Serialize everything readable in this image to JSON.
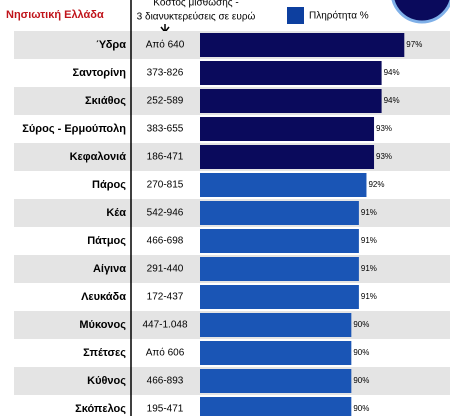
{
  "chart_data": {
    "type": "barh",
    "title": "Νησιωτική Ελλάδα",
    "cost_header": [
      "Κόστος μίσθωσης -",
      "3 διανυκτερεύσεις σε ευρώ"
    ],
    "categories": [
      "Ύδρα",
      "Σαντορίνη",
      "Σκιάθος",
      "Σύρος - Ερμούπολη",
      "Κεφαλονιά",
      "Πάρος",
      "Κέα",
      "Πάτμος",
      "Αίγινα",
      "Λευκάδα",
      "Μύκονος",
      "Σπέτσες",
      "Κύθνος",
      "Σκόπελος"
    ],
    "costs": [
      "Από 640",
      "373-826",
      "252-589",
      "383-655",
      "186-471",
      "270-815",
      "542-946",
      "466-698",
      "291-440",
      "172-437",
      "447-1.048",
      "Από 606",
      "466-893",
      "195-471"
    ],
    "series": [
      {
        "name": "Πληρότητα %",
        "color": "#0d3f9f",
        "values": [
          97,
          94,
          94,
          93,
          93,
          92,
          91,
          91,
          91,
          91,
          90,
          90,
          90,
          90
        ],
        "value_labels": [
          "97%",
          "94%",
          "94%",
          "93%",
          "93%",
          "92%",
          "91%",
          "91%",
          "91%",
          "91%",
          "90%",
          "90%",
          "90%",
          "90%"
        ]
      }
    ],
    "bar_colors": [
      "#0a0a5c",
      "#0a0a5c",
      "#0a0a5c",
      "#0a0a5c",
      "#0a0a5c",
      "#1a55b5",
      "#1a55b5",
      "#1a55b5",
      "#1a55b5",
      "#1a55b5",
      "#1a55b5",
      "#1a55b5",
      "#1a55b5",
      "#1a55b5"
    ],
    "xlim": [
      70,
      100
    ]
  }
}
